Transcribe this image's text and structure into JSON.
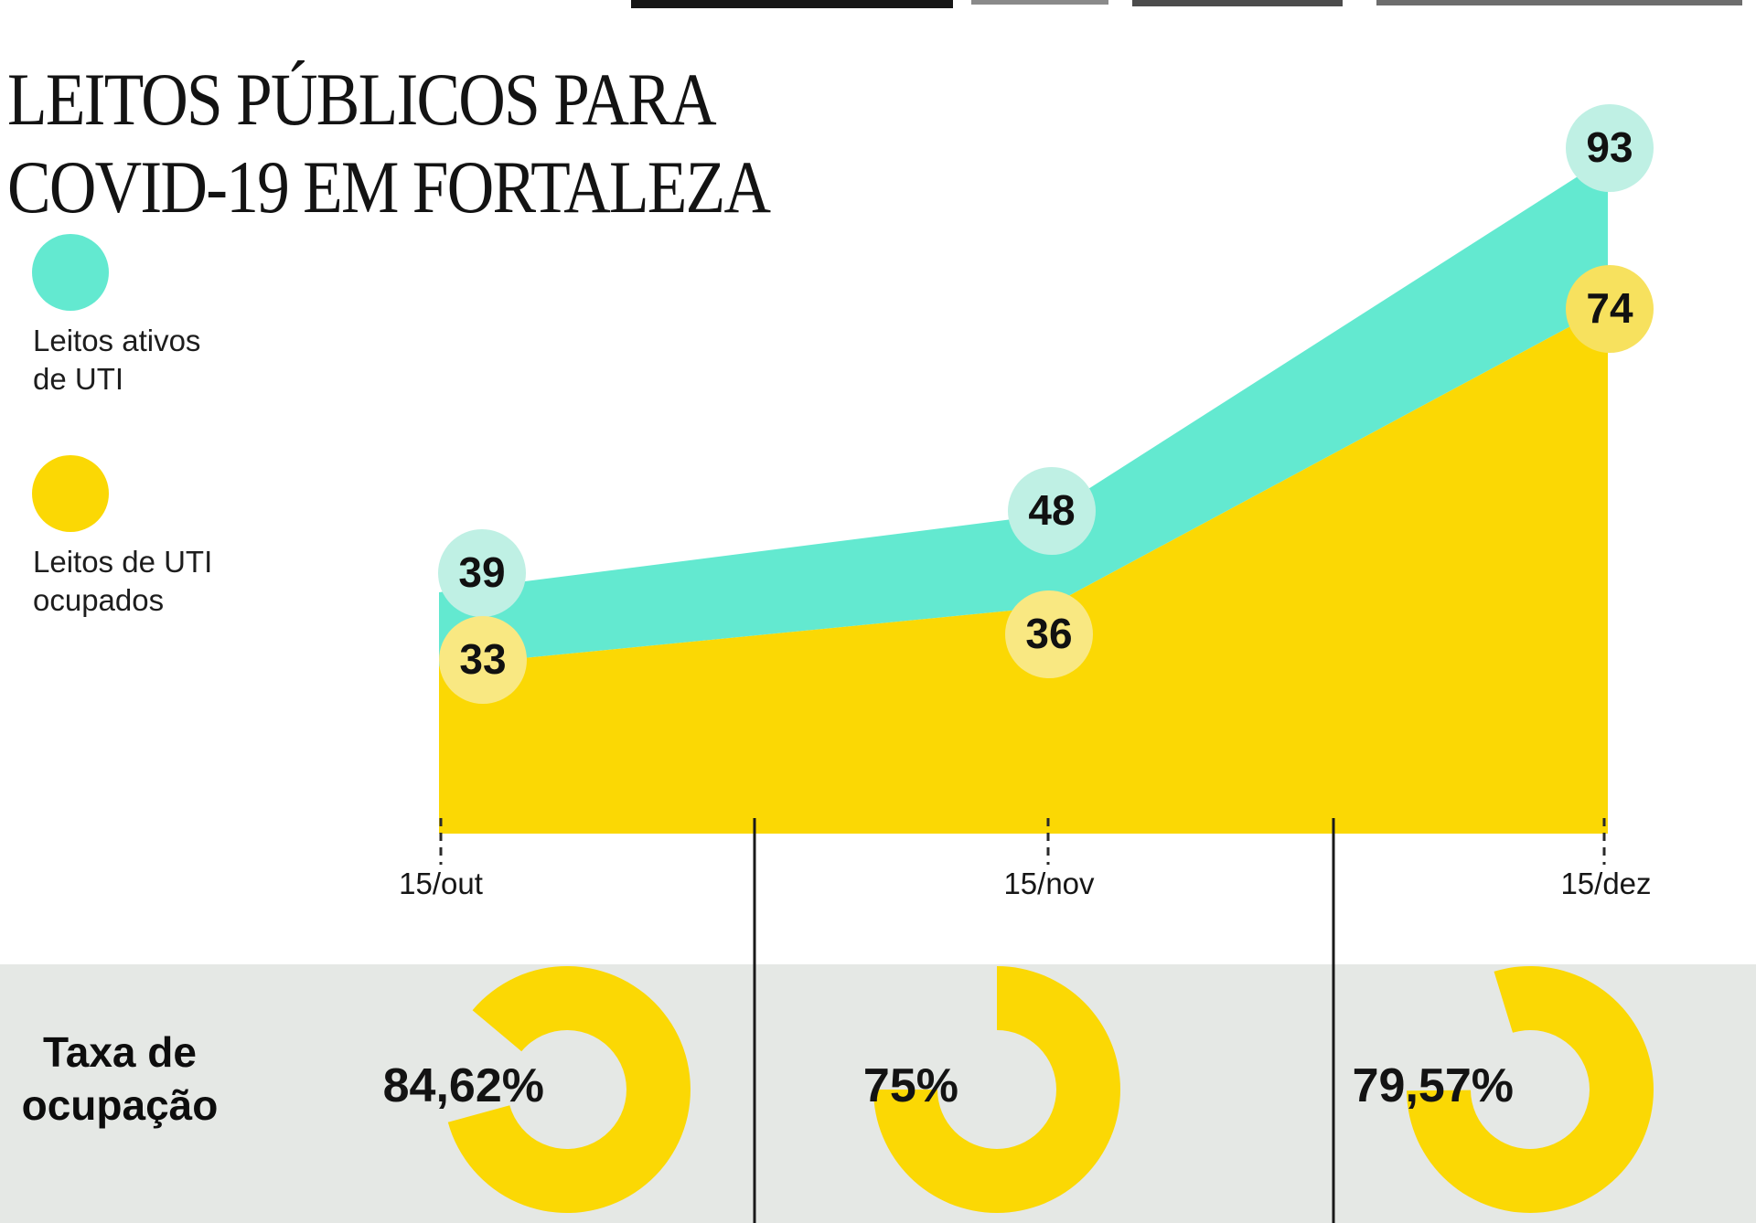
{
  "title": {
    "line1": "LEITOS PÚBLICOS PARA",
    "line2": "COVID-19 EM FORTALEZA"
  },
  "legend": {
    "items": [
      {
        "label_line1": "Leitos ativos",
        "label_line2": "de UTI",
        "color": "#63E9D0"
      },
      {
        "label_line1": "Leitos de UTI",
        "label_line2": "ocupados",
        "color": "#FBD804"
      }
    ]
  },
  "chart_data": {
    "type": "area",
    "categories": [
      "15/out",
      "15/nov",
      "15/dez"
    ],
    "series": [
      {
        "name": "Leitos ativos de UTI",
        "values": [
          39,
          48,
          93
        ],
        "color": "#63E9D0",
        "label_bubble_color": "#BFF0E4"
      },
      {
        "name": "Leitos de UTI ocupados",
        "values": [
          33,
          36,
          74
        ],
        "color": "#FBD804",
        "label_bubble_color": "#F9E882"
      }
    ],
    "legend_position": "left",
    "grid": false,
    "y_axis_visible": false
  },
  "occupancy": {
    "label": "Taxa de ocupação",
    "label_line1": "Taxa de",
    "label_line2": "ocupação",
    "values": [
      "84,62%",
      "75%",
      "79,57%"
    ],
    "percents": [
      84.62,
      75,
      79.57
    ],
    "chart_type": "donut",
    "donut_color": "#FBD804",
    "band_background": "#E5E8E5"
  }
}
